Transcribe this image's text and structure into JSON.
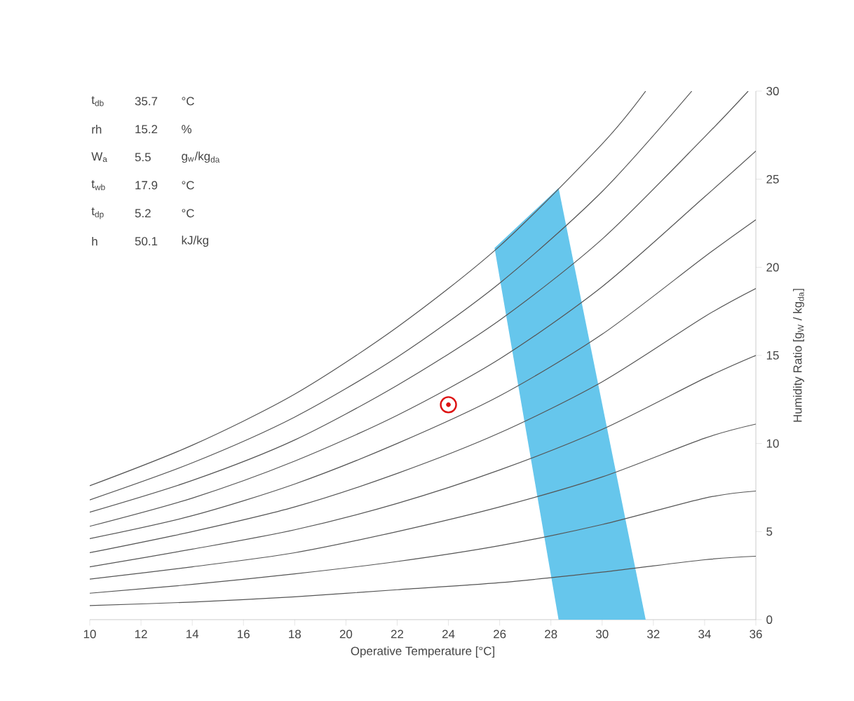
{
  "chart_data": {
    "type": "line",
    "xlabel": "Operative Temperature [°C]",
    "ylabel": "Humidity Ratio [g$_{W}$ / kg$_{da}$]",
    "xlim": [
      10,
      36
    ],
    "ylim": [
      0,
      30
    ],
    "xticks": [
      10,
      12,
      14,
      16,
      18,
      20,
      22,
      24,
      26,
      28,
      30,
      32,
      34,
      36
    ],
    "yticks": [
      0,
      5,
      10,
      15,
      20,
      25,
      30
    ],
    "annotations": [
      "t$_{db}$",
      "35.7",
      "°C",
      "rh",
      "15.2",
      "%",
      "W$_{a}$",
      "5.5",
      "g$_{w}$/kg$_{da}$",
      "t$_{wb}$",
      "17.9",
      "°C",
      "t$_{dp}$",
      "5.2",
      "°C",
      "h",
      "50.1",
      "kJ/kg"
    ],
    "series": [
      {
        "type": "area",
        "color": "#66c6ec",
        "x": [
          25.8,
          28.3,
          31.7,
          28.3
        ],
        "values": [
          21.1,
          24.5,
          0,
          0
        ]
      },
      {
        "color": "#555555",
        "x": [
          10,
          14,
          18,
          22,
          26,
          30,
          34,
          36
        ],
        "values": [
          0.8,
          1.0,
          1.3,
          1.7,
          2.1,
          2.7,
          3.4,
          3.6
        ]
      },
      {
        "color": "#555555",
        "x": [
          10,
          14,
          18,
          22,
          26,
          30,
          34,
          36
        ],
        "values": [
          1.5,
          2.0,
          2.6,
          3.3,
          4.2,
          5.4,
          6.9,
          7.3
        ]
      },
      {
        "color": "#555555",
        "x": [
          10,
          14,
          18,
          22,
          26,
          30,
          34,
          36
        ],
        "values": [
          2.3,
          3.0,
          3.8,
          5.0,
          6.4,
          8.1,
          10.3,
          11.1
        ]
      },
      {
        "color": "#555555",
        "x": [
          10,
          14,
          18,
          22,
          26,
          30,
          34,
          36
        ],
        "values": [
          3.0,
          4.0,
          5.1,
          6.6,
          8.5,
          10.8,
          13.7,
          15.0
        ]
      },
      {
        "color": "#555555",
        "x": [
          10,
          14,
          18,
          22,
          26,
          30,
          34,
          36
        ],
        "values": [
          3.8,
          5.0,
          6.4,
          8.3,
          10.6,
          13.5,
          17.2,
          18.8
        ]
      },
      {
        "color": "#555555",
        "x": [
          10,
          14,
          18,
          22,
          26,
          30,
          34,
          36
        ],
        "values": [
          4.6,
          5.9,
          7.7,
          10.0,
          12.7,
          16.2,
          20.6,
          22.7
        ]
      },
      {
        "color": "#555555",
        "x": [
          10,
          14,
          18,
          22,
          26,
          30,
          34,
          36
        ],
        "values": [
          5.3,
          6.9,
          9.0,
          11.6,
          14.8,
          18.9,
          24.0,
          26.6
        ]
      },
      {
        "color": "#555555",
        "x": [
          10,
          14,
          18,
          22,
          26,
          30,
          34,
          35.7
        ],
        "values": [
          6.1,
          7.9,
          10.2,
          13.3,
          17.0,
          21.6,
          27.4,
          30
        ]
      },
      {
        "color": "#555555",
        "x": [
          10,
          14,
          18,
          22,
          26,
          30,
          33.5
        ],
        "values": [
          6.8,
          8.9,
          11.5,
          14.9,
          19.1,
          24.3,
          30
        ]
      },
      {
        "color": "#555555",
        "x": [
          10,
          14,
          18,
          22,
          26,
          30,
          31.7
        ],
        "values": [
          7.6,
          9.9,
          12.8,
          16.6,
          21.2,
          27.0,
          30
        ]
      },
      {
        "type": "scatter",
        "color": "#dd1111",
        "marker": "circle",
        "x": [
          24
        ],
        "values": [
          12.2
        ]
      }
    ]
  }
}
